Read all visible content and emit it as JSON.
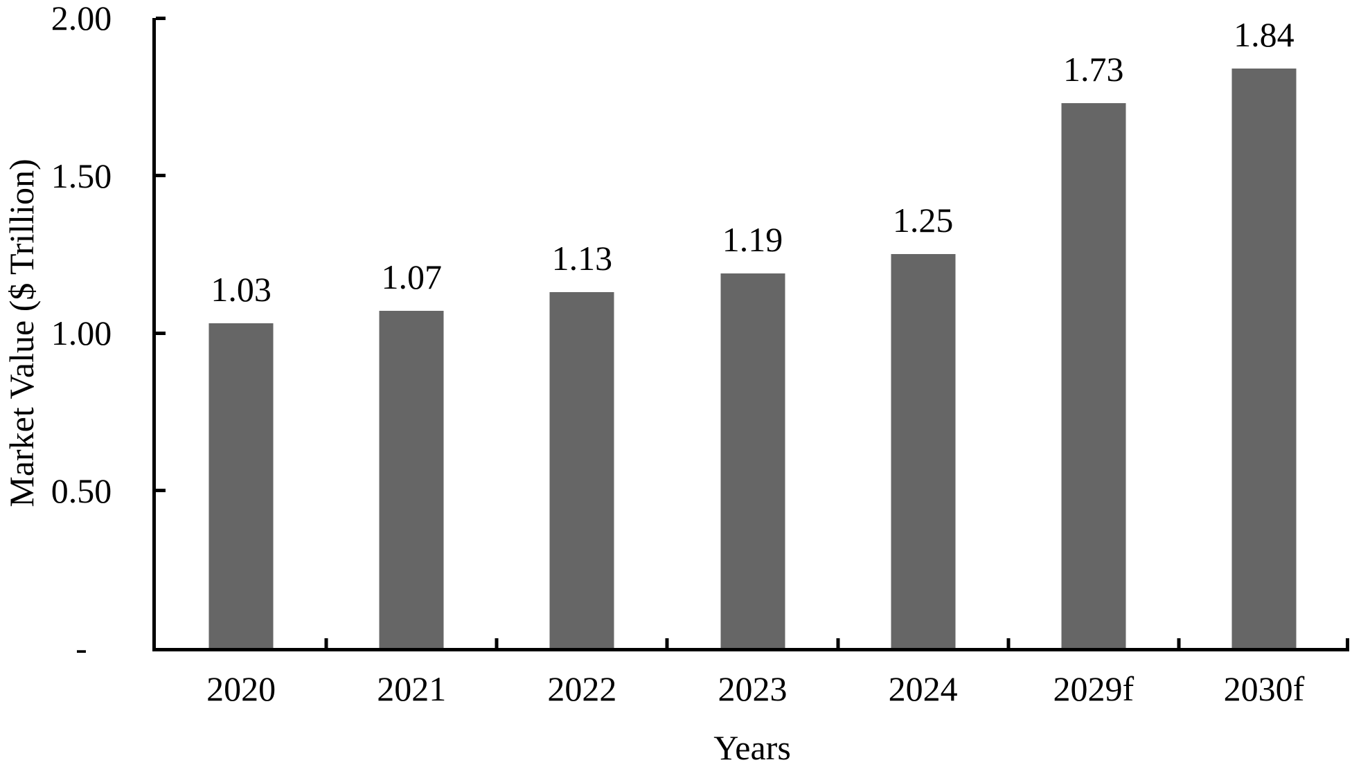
{
  "chart_data": {
    "type": "bar",
    "title": "",
    "xlabel": "Years",
    "ylabel": "Market Value ($ Trillion)",
    "categories": [
      "2020",
      "2021",
      "2022",
      "2023",
      "2024",
      "2029f",
      "2030f"
    ],
    "values": [
      1.03,
      1.07,
      1.13,
      1.19,
      1.25,
      1.73,
      1.84
    ],
    "value_labels": [
      "1.03",
      "1.07",
      "1.13",
      "1.19",
      "1.25",
      "1.73",
      "1.84"
    ],
    "ylim": [
      0,
      2
    ],
    "y_ticks": [
      {
        "value": 2.0,
        "label": "2.00"
      },
      {
        "value": 1.5,
        "label": "1.50"
      },
      {
        "value": 1.0,
        "label": "1.00"
      },
      {
        "value": 0.5,
        "label": "0.50"
      },
      {
        "value": 0.0,
        "label": "-"
      }
    ],
    "grid": false,
    "legend": "none",
    "bar_color": "#666666",
    "axis_color": "#000000",
    "text_color": "#000000"
  }
}
